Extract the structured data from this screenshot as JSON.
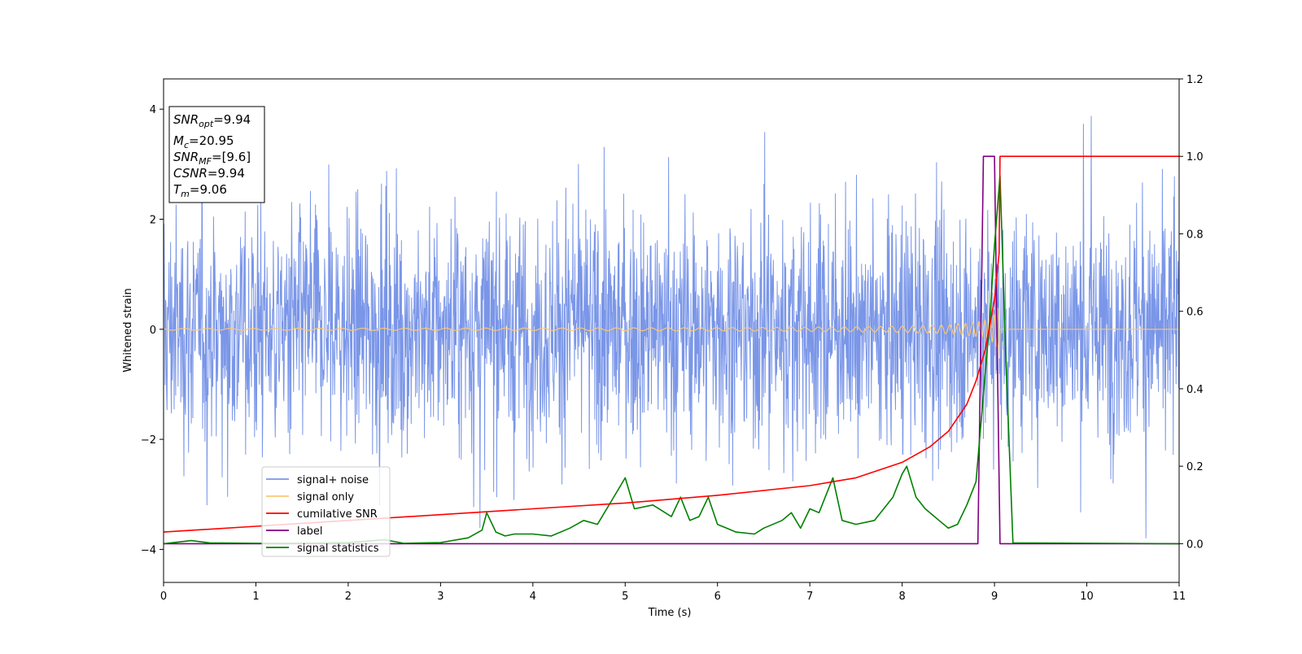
{
  "chart_data": {
    "type": "line",
    "xlabel": "Time (s)",
    "ylabel": "Whitened strain",
    "xlim": [
      0,
      11
    ],
    "ylim": [
      -4.6,
      4.55
    ],
    "y2lim": [
      -0.1,
      1.2
    ],
    "x_ticks": [
      "0",
      "1",
      "2",
      "3",
      "4",
      "5",
      "6",
      "7",
      "8",
      "9",
      "10",
      "11"
    ],
    "y_ticks": [
      "4",
      "2",
      "0",
      "−2",
      "−4"
    ],
    "y2_ticks": [
      "1.2",
      "1.0",
      "0.8",
      "0.6",
      "0.4",
      "0.2",
      "0.0"
    ],
    "grid": false,
    "legend_position": "lower-left",
    "legend": [
      {
        "name": "signal+ noise",
        "color": "#7a96e8"
      },
      {
        "name": "signal only",
        "color": "#f9c874"
      },
      {
        "name": "cumilative SNR",
        "color": "#ff0000"
      },
      {
        "name": "label",
        "color": "#800080"
      },
      {
        "name": "signal statistics",
        "color": "#008000"
      }
    ],
    "info_box": {
      "snr_opt": {
        "base": "SNR",
        "sub": "opt",
        "value": "=9.94"
      },
      "mc": {
        "base": "M",
        "sub": "c",
        "value": "=20.95"
      },
      "snr_mf": {
        "base": "SNR",
        "sub": "MF",
        "value": "=[9.6]"
      },
      "csnr": {
        "base": "CSNR",
        "value": "=9.94"
      },
      "tm": {
        "base": "T",
        "sub": "m",
        "value": "=9.06"
      }
    },
    "series": [
      {
        "name": "signal+ noise",
        "axis": "left",
        "noise_amplitude": 1.0,
        "spike_range": [
          -4.15,
          4.15
        ],
        "x_range": [
          0,
          11
        ]
      },
      {
        "name": "signal only",
        "axis": "left",
        "x_range": [
          0,
          9.06
        ],
        "peak_amplitude": 1.1
      },
      {
        "name": "cumilative SNR",
        "axis": "right",
        "x": [
          0,
          1,
          2,
          3,
          4,
          5,
          6,
          7,
          7.5,
          8,
          8.3,
          8.5,
          8.7,
          8.8,
          8.9,
          9.0,
          9.05,
          9.06,
          11
        ],
        "y": [
          0.03,
          0.045,
          0.06,
          0.075,
          0.09,
          0.105,
          0.125,
          0.15,
          0.17,
          0.21,
          0.25,
          0.29,
          0.36,
          0.42,
          0.5,
          0.63,
          0.75,
          1.0,
          1.0
        ]
      },
      {
        "name": "label",
        "axis": "right",
        "x": [
          0,
          8.82,
          8.88,
          9.0,
          9.06,
          11
        ],
        "y": [
          0,
          0,
          1.0,
          1.0,
          0,
          0
        ]
      },
      {
        "name": "signal statistics",
        "axis": "right",
        "x": [
          0,
          0.3,
          0.5,
          1,
          1.5,
          2,
          2.4,
          2.6,
          3,
          3.3,
          3.45,
          3.5,
          3.6,
          3.7,
          3.8,
          4.0,
          4.2,
          4.4,
          4.55,
          4.7,
          4.85,
          4.95,
          5.0,
          5.1,
          5.3,
          5.5,
          5.6,
          5.7,
          5.8,
          5.9,
          6.0,
          6.2,
          6.4,
          6.5,
          6.7,
          6.8,
          6.9,
          7.0,
          7.1,
          7.25,
          7.35,
          7.5,
          7.7,
          7.9,
          8.0,
          8.05,
          8.15,
          8.25,
          8.4,
          8.5,
          8.6,
          8.7,
          8.8,
          8.9,
          8.95,
          9.0,
          9.06,
          9.12,
          9.2,
          11
        ],
        "y": [
          0,
          0.008,
          0.002,
          0.001,
          0.001,
          0.003,
          0.01,
          0.001,
          0.003,
          0.015,
          0.035,
          0.08,
          0.03,
          0.02,
          0.025,
          0.025,
          0.02,
          0.04,
          0.06,
          0.05,
          0.11,
          0.15,
          0.17,
          0.09,
          0.1,
          0.07,
          0.12,
          0.06,
          0.07,
          0.12,
          0.05,
          0.03,
          0.025,
          0.04,
          0.06,
          0.08,
          0.04,
          0.09,
          0.08,
          0.17,
          0.06,
          0.05,
          0.06,
          0.12,
          0.18,
          0.2,
          0.12,
          0.09,
          0.06,
          0.04,
          0.05,
          0.1,
          0.16,
          0.44,
          0.58,
          0.77,
          0.95,
          0.5,
          0.002,
          0
        ]
      }
    ]
  }
}
